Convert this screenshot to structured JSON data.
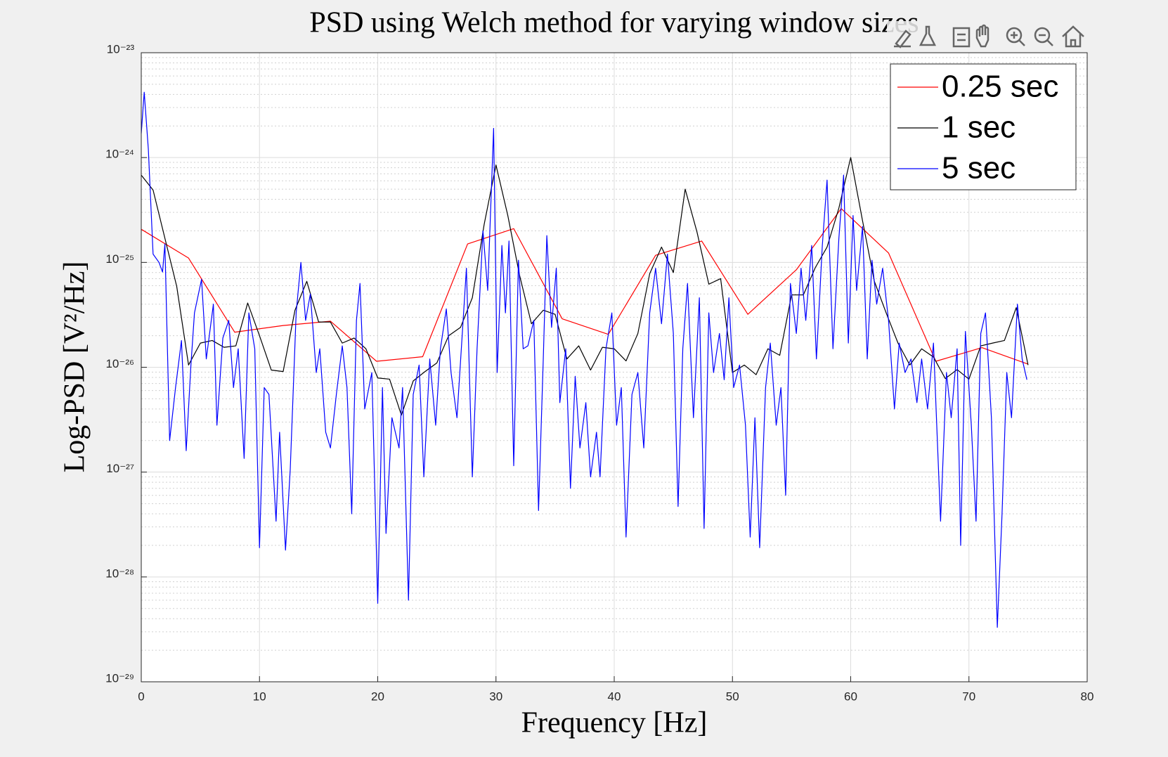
{
  "chart_data": {
    "type": "line",
    "title": "PSD using Welch method for varying window sizes",
    "x_label": "Frequency [Hz]",
    "y_label": "Log-PSD [V²/Hz]",
    "xlim": [
      0,
      80
    ],
    "xticks": [
      0,
      10,
      20,
      30,
      40,
      50,
      60,
      70,
      80
    ],
    "ylim": [
      1e-29,
      1e-23
    ],
    "yticks": [
      {
        "value": 1e-29,
        "label": "10⁻²⁹"
      },
      {
        "value": 1e-28,
        "label": "10⁻²⁸"
      },
      {
        "value": 1e-27,
        "label": "10⁻²⁷"
      },
      {
        "value": 1e-26,
        "label": "10⁻²⁶"
      },
      {
        "value": 1e-25,
        "label": "10⁻²⁵"
      },
      {
        "value": 1e-24,
        "label": "10⁻²⁴"
      },
      {
        "value": 1e-23,
        "label": "10⁻²³"
      }
    ],
    "y_scale": "log",
    "grid": true,
    "minor_grid": true,
    "legend": "northeast",
    "series": [
      {
        "name": "0.25 sec",
        "color": "#ff0000",
        "x": [
          0,
          4.0,
          7.9,
          12.0,
          16.0,
          19.9,
          23.8,
          27.6,
          31.5,
          35.6,
          39.5,
          43.5,
          47.4,
          51.3,
          55.4,
          59.2,
          63.2,
          67.2,
          71.1,
          75.0
        ],
        "values": [
          2.07e-25,
          1.1e-25,
          2.16e-26,
          2.5e-26,
          2.75e-26,
          1.14e-26,
          1.26e-26,
          1.5e-25,
          2.1e-25,
          2.9e-26,
          2.06e-26,
          1.17e-25,
          1.6e-25,
          3.2e-26,
          8.5e-26,
          3.26e-25,
          1.23e-25,
          1.14e-26,
          1.54e-26,
          1.07e-26
        ]
      },
      {
        "name": "1 sec",
        "color": "#000000",
        "x": [
          0,
          1,
          2,
          3,
          4,
          5,
          6,
          7,
          8,
          9,
          10,
          11,
          12,
          13,
          14,
          15,
          16,
          17,
          18,
          19,
          20,
          21,
          22,
          23,
          24,
          25,
          26,
          27,
          28,
          29,
          30,
          31,
          32,
          33,
          34,
          35,
          36,
          37,
          38,
          39,
          40,
          41,
          42,
          43,
          44,
          45,
          46,
          47,
          48,
          49,
          50,
          51,
          52,
          53,
          54,
          55,
          56,
          57,
          58,
          59,
          60,
          61,
          62,
          63,
          64,
          65,
          66,
          67,
          68,
          69,
          70,
          71,
          72,
          73,
          74,
          75
        ],
        "values": [
          6.8e-25,
          4.9e-25,
          1.7e-25,
          5.9e-26,
          1.05e-26,
          1.7e-26,
          1.8e-26,
          1.55e-26,
          1.6e-26,
          4.1e-26,
          2e-26,
          9.4e-27,
          9.1e-27,
          3.5e-26,
          6.6e-26,
          2.7e-26,
          2.7e-26,
          1.7e-26,
          1.9e-26,
          1.5e-26,
          7.9e-27,
          7.7e-27,
          3.5e-27,
          7.4e-27,
          9.1e-27,
          1.1e-26,
          2e-26,
          2.4e-26,
          4.6e-26,
          2.3e-25,
          8.5e-25,
          2.8e-25,
          7.5e-26,
          2.6e-26,
          3.5e-26,
          3.2e-26,
          1.2e-26,
          1.6e-26,
          9.4e-27,
          1.55e-26,
          1.5e-26,
          1.15e-26,
          2.1e-26,
          7.8e-26,
          1.4e-25,
          8e-26,
          5e-25,
          1.95e-25,
          6.2e-26,
          7e-26,
          8.9e-27,
          1.05e-26,
          8.5e-27,
          1.5e-26,
          1.3e-26,
          4.9e-26,
          4.9e-26,
          8.9e-26,
          1.4e-25,
          3.3e-25,
          1e-24,
          2.5e-25,
          6.6e-26,
          3.3e-26,
          1.7e-26,
          1.05e-26,
          1.5e-26,
          1.25e-26,
          7.8e-27,
          9.5e-27,
          7.7e-27,
          1.6e-26,
          1.7e-26,
          1.8e-26,
          3.7e-26,
          1.05e-26
        ]
      },
      {
        "name": "5 sec",
        "color": "#0000ff",
        "x": [
          0,
          0.25,
          0.6,
          1.0,
          1.5,
          1.8,
          2.0,
          2.4,
          2.9,
          3.4,
          3.8,
          4.2,
          4.5,
          5.1,
          5.5,
          6.1,
          6.4,
          6.9,
          7.4,
          7.8,
          8.2,
          8.7,
          9.1,
          9.6,
          10.0,
          10.4,
          10.8,
          11.4,
          11.7,
          12.2,
          12.6,
          13.1,
          13.5,
          13.9,
          14.3,
          14.8,
          15.1,
          15.6,
          16.0,
          16.5,
          17.0,
          17.4,
          17.8,
          18.2,
          18.5,
          18.9,
          19.5,
          20.0,
          20.4,
          20.7,
          21.2,
          21.8,
          22.1,
          22.6,
          23.0,
          23.5,
          23.9,
          24.4,
          24.9,
          25.3,
          25.8,
          26.2,
          26.7,
          27.1,
          27.5,
          28.0,
          28.4,
          28.9,
          29.3,
          29.8,
          30.1,
          30.5,
          30.8,
          31.1,
          31.5,
          31.9,
          32.3,
          32.7,
          33.2,
          33.6,
          34.0,
          34.3,
          34.7,
          35.1,
          35.4,
          35.9,
          36.3,
          36.7,
          37.1,
          37.6,
          38.0,
          38.5,
          38.8,
          39.3,
          39.8,
          40.2,
          40.6,
          41.0,
          41.5,
          42.0,
          42.5,
          43.0,
          43.5,
          44.0,
          44.5,
          45.0,
          45.4,
          45.8,
          46.2,
          46.7,
          47.2,
          47.6,
          48.0,
          48.4,
          48.9,
          49.3,
          49.7,
          50.1,
          50.6,
          51.1,
          51.5,
          51.9,
          52.3,
          52.8,
          53.2,
          53.7,
          54.1,
          54.5,
          54.9,
          55.4,
          55.8,
          56.2,
          56.7,
          57.1,
          57.6,
          58.0,
          58.5,
          59.0,
          59.4,
          59.8,
          60.2,
          60.5,
          61.0,
          61.4,
          61.8,
          62.2,
          62.7,
          63.2,
          63.7,
          64.1,
          64.6,
          65.1,
          65.6,
          66.0,
          66.5,
          67.0,
          67.6,
          68.1,
          68.5,
          69.0,
          69.3,
          69.7,
          70.2,
          70.6,
          71.0,
          71.4,
          71.9,
          72.4,
          72.8,
          73.2,
          73.6,
          74.1,
          74.5,
          74.9
        ],
        "values": [
          1.7e-24,
          4.2e-24,
          1.2e-24,
          1.2e-25,
          1e-25,
          8.1e-26,
          1.5e-25,
          2e-27,
          6.4e-27,
          1.8e-26,
          1.6e-27,
          1.05e-26,
          3.3e-26,
          6.9e-26,
          1.2e-26,
          4e-26,
          2.8e-27,
          1.9e-26,
          2.8e-26,
          6.4e-27,
          1.5e-26,
          1.35e-27,
          3.3e-26,
          1.5e-26,
          1.9e-28,
          6.4e-27,
          5.5e-27,
          3.4e-28,
          2.4e-27,
          1.8e-28,
          1.06e-27,
          3.3e-26,
          1e-25,
          2.8e-26,
          5e-26,
          8.9e-27,
          1.5e-26,
          2.4e-27,
          1.7e-27,
          5.5e-27,
          1.6e-26,
          6.4e-27,
          4e-28,
          2.8e-26,
          6.3e-26,
          4e-27,
          8.9e-27,
          5.6e-29,
          6.4e-27,
          2.6e-28,
          3.3e-27,
          1.7e-27,
          6.4e-27,
          6e-29,
          5.5e-27,
          1.05e-26,
          9e-28,
          1.2e-26,
          2.8e-27,
          1.5e-26,
          3.6e-26,
          8.9e-27,
          3.3e-27,
          1.7e-26,
          8.8e-26,
          9e-28,
          1.5e-26,
          2e-25,
          5.4e-26,
          1.9e-24,
          8.9e-27,
          1.45e-25,
          3.3e-26,
          1.6e-25,
          1.15e-27,
          1.05e-25,
          1.5e-26,
          1.6e-26,
          2.8e-26,
          4.3e-28,
          1.2e-26,
          1.8e-25,
          2.4e-26,
          8.8e-26,
          4.6e-27,
          1.5e-26,
          7e-28,
          8.2e-27,
          1.7e-27,
          4.6e-27,
          9e-28,
          2.4e-27,
          9e-28,
          1.5e-26,
          3.3e-26,
          2.8e-27,
          6.4e-27,
          2.4e-28,
          5.5e-27,
          8.9e-27,
          1.7e-27,
          3.3e-26,
          8.8e-26,
          2.6e-26,
          1.2e-25,
          2.1e-26,
          4.7e-28,
          1.5e-26,
          6.3e-26,
          3.3e-27,
          4.6e-26,
          2.9e-28,
          3.3e-26,
          8.9e-27,
          2.1e-26,
          7.6e-27,
          4.6e-26,
          6.4e-27,
          1.05e-26,
          2.8e-27,
          2.4e-28,
          3.3e-27,
          1.9e-28,
          6.4e-27,
          1.7e-26,
          2.8e-27,
          6.4e-27,
          6e-28,
          6.3e-26,
          2.1e-26,
          8.8e-26,
          2.8e-26,
          1.45e-25,
          1.2e-26,
          1.45e-25,
          6.1e-25,
          1.5e-26,
          1.7e-25,
          6.8e-25,
          1.7e-26,
          2.8e-25,
          5.4e-26,
          2.2e-25,
          1.2e-26,
          1.05e-25,
          4e-26,
          8.8e-26,
          2.8e-26,
          4e-27,
          1.7e-26,
          8.9e-27,
          1.2e-26,
          4.6e-27,
          1.2e-26,
          4e-27,
          1.7e-26,
          3.4e-28,
          8.9e-27,
          3.3e-27,
          1.5e-26,
          2e-28,
          2.2e-26,
          2.8e-27,
          3.4e-28,
          2.1e-26,
          3.3e-26,
          3.3e-27,
          3.3e-29,
          4e-28,
          8.9e-27,
          3.3e-27,
          4e-26,
          1.2e-26,
          7.6e-27
        ]
      }
    ]
  }
}
